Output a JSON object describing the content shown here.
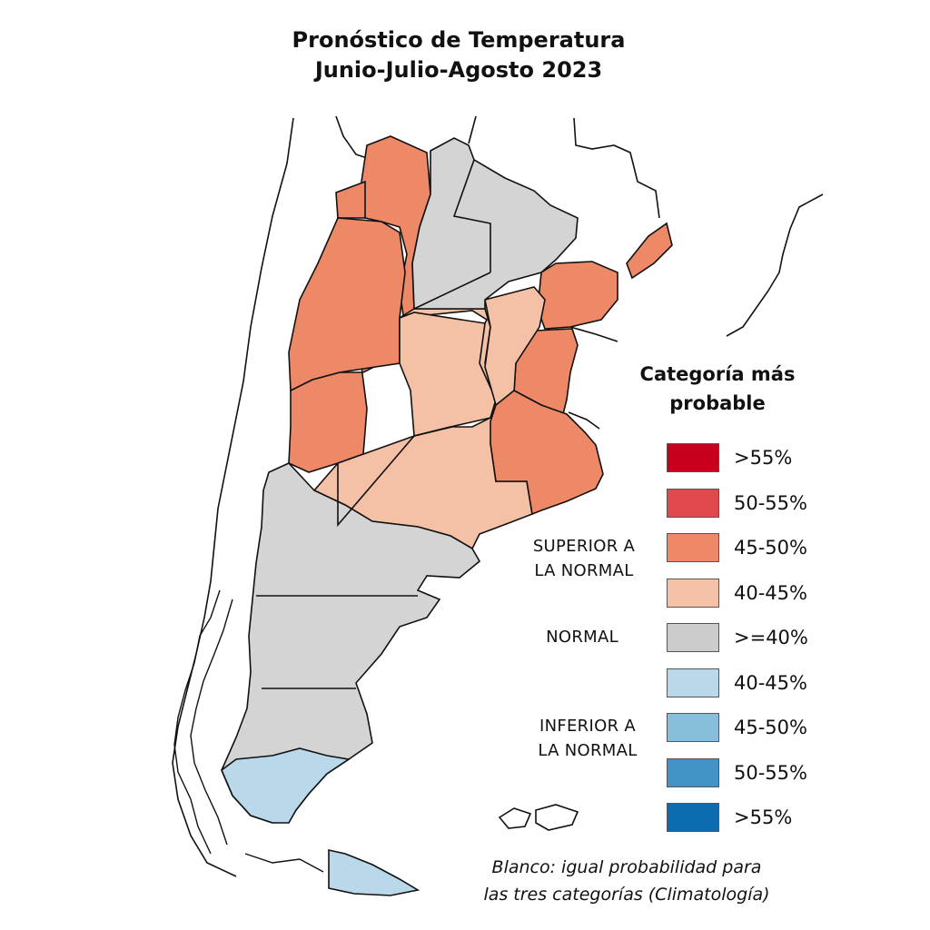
{
  "title": {
    "line1": "Pronóstico de Temperatura",
    "line2": "Junio-Julio-Agosto 2023"
  },
  "legend": {
    "title_line1": "Categoría más",
    "title_line2": "probable",
    "groups": {
      "superior_line1": "SUPERIOR A",
      "superior_line2": "LA NORMAL",
      "normal": "NORMAL",
      "inferior_line1": "INFERIOR A",
      "inferior_line2": "LA NORMAL"
    },
    "items": [
      {
        "label": ">55%",
        "color": "#c8001e"
      },
      {
        "label": "50-55%",
        "color": "#e04a4c"
      },
      {
        "label": "45-50%",
        "color": "#ee8968"
      },
      {
        "label": "40-45%",
        "color": "#f5c1a6"
      },
      {
        "label": ">=40%",
        "color": "#cccccc"
      },
      {
        "label": "40-45%",
        "color": "#b9d8ea"
      },
      {
        "label": "45-50%",
        "color": "#86bedb"
      },
      {
        "label": "50-55%",
        "color": "#4394c6"
      },
      {
        "label": ">55%",
        "color": "#0d6cb0"
      }
    ]
  },
  "footnote": {
    "line1": "Blanco: igual probabilidad para",
    "line2": "las tres categorías (Climatología)"
  },
  "map_colors": {
    "superior_45_50": "#ee8968",
    "superior_40_45": "#f5c1a6",
    "normal": "#d4d4d4",
    "inferior_40_45": "#b9d8ea",
    "white": "#ffffff",
    "border": "#111111"
  }
}
